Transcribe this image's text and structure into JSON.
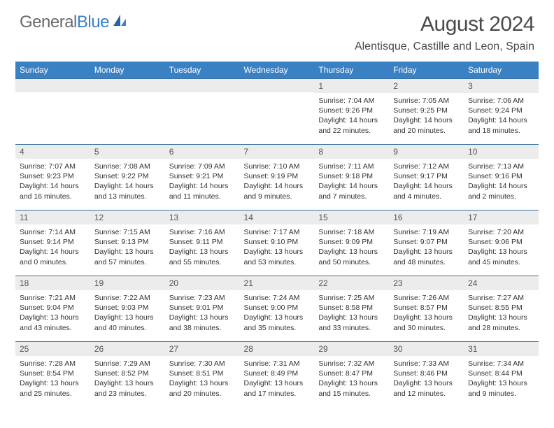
{
  "logo": {
    "part1": "General",
    "part2": "Blue"
  },
  "title": "August 2024",
  "location": "Alentisque, Castille and Leon, Spain",
  "colors": {
    "header_bg": "#3a81c4",
    "daynum_bg": "#ececec",
    "row_border": "#3a6fa3",
    "text_gray": "#6a6a6a",
    "text_blue": "#3a81c4"
  },
  "fonts": {
    "title_size": 30,
    "loc_size": 16,
    "th_size": 12,
    "detail_size": 10.5
  },
  "daynames": [
    "Sunday",
    "Monday",
    "Tuesday",
    "Wednesday",
    "Thursday",
    "Friday",
    "Saturday"
  ],
  "weeks": [
    [
      {
        "n": "",
        "sr": "",
        "ss": "",
        "dl": ""
      },
      {
        "n": "",
        "sr": "",
        "ss": "",
        "dl": ""
      },
      {
        "n": "",
        "sr": "",
        "ss": "",
        "dl": ""
      },
      {
        "n": "",
        "sr": "",
        "ss": "",
        "dl": ""
      },
      {
        "n": "1",
        "sr": "Sunrise: 7:04 AM",
        "ss": "Sunset: 9:26 PM",
        "dl": "Daylight: 14 hours and 22 minutes."
      },
      {
        "n": "2",
        "sr": "Sunrise: 7:05 AM",
        "ss": "Sunset: 9:25 PM",
        "dl": "Daylight: 14 hours and 20 minutes."
      },
      {
        "n": "3",
        "sr": "Sunrise: 7:06 AM",
        "ss": "Sunset: 9:24 PM",
        "dl": "Daylight: 14 hours and 18 minutes."
      }
    ],
    [
      {
        "n": "4",
        "sr": "Sunrise: 7:07 AM",
        "ss": "Sunset: 9:23 PM",
        "dl": "Daylight: 14 hours and 16 minutes."
      },
      {
        "n": "5",
        "sr": "Sunrise: 7:08 AM",
        "ss": "Sunset: 9:22 PM",
        "dl": "Daylight: 14 hours and 13 minutes."
      },
      {
        "n": "6",
        "sr": "Sunrise: 7:09 AM",
        "ss": "Sunset: 9:21 PM",
        "dl": "Daylight: 14 hours and 11 minutes."
      },
      {
        "n": "7",
        "sr": "Sunrise: 7:10 AM",
        "ss": "Sunset: 9:19 PM",
        "dl": "Daylight: 14 hours and 9 minutes."
      },
      {
        "n": "8",
        "sr": "Sunrise: 7:11 AM",
        "ss": "Sunset: 9:18 PM",
        "dl": "Daylight: 14 hours and 7 minutes."
      },
      {
        "n": "9",
        "sr": "Sunrise: 7:12 AM",
        "ss": "Sunset: 9:17 PM",
        "dl": "Daylight: 14 hours and 4 minutes."
      },
      {
        "n": "10",
        "sr": "Sunrise: 7:13 AM",
        "ss": "Sunset: 9:16 PM",
        "dl": "Daylight: 14 hours and 2 minutes."
      }
    ],
    [
      {
        "n": "11",
        "sr": "Sunrise: 7:14 AM",
        "ss": "Sunset: 9:14 PM",
        "dl": "Daylight: 14 hours and 0 minutes."
      },
      {
        "n": "12",
        "sr": "Sunrise: 7:15 AM",
        "ss": "Sunset: 9:13 PM",
        "dl": "Daylight: 13 hours and 57 minutes."
      },
      {
        "n": "13",
        "sr": "Sunrise: 7:16 AM",
        "ss": "Sunset: 9:11 PM",
        "dl": "Daylight: 13 hours and 55 minutes."
      },
      {
        "n": "14",
        "sr": "Sunrise: 7:17 AM",
        "ss": "Sunset: 9:10 PM",
        "dl": "Daylight: 13 hours and 53 minutes."
      },
      {
        "n": "15",
        "sr": "Sunrise: 7:18 AM",
        "ss": "Sunset: 9:09 PM",
        "dl": "Daylight: 13 hours and 50 minutes."
      },
      {
        "n": "16",
        "sr": "Sunrise: 7:19 AM",
        "ss": "Sunset: 9:07 PM",
        "dl": "Daylight: 13 hours and 48 minutes."
      },
      {
        "n": "17",
        "sr": "Sunrise: 7:20 AM",
        "ss": "Sunset: 9:06 PM",
        "dl": "Daylight: 13 hours and 45 minutes."
      }
    ],
    [
      {
        "n": "18",
        "sr": "Sunrise: 7:21 AM",
        "ss": "Sunset: 9:04 PM",
        "dl": "Daylight: 13 hours and 43 minutes."
      },
      {
        "n": "19",
        "sr": "Sunrise: 7:22 AM",
        "ss": "Sunset: 9:03 PM",
        "dl": "Daylight: 13 hours and 40 minutes."
      },
      {
        "n": "20",
        "sr": "Sunrise: 7:23 AM",
        "ss": "Sunset: 9:01 PM",
        "dl": "Daylight: 13 hours and 38 minutes."
      },
      {
        "n": "21",
        "sr": "Sunrise: 7:24 AM",
        "ss": "Sunset: 9:00 PM",
        "dl": "Daylight: 13 hours and 35 minutes."
      },
      {
        "n": "22",
        "sr": "Sunrise: 7:25 AM",
        "ss": "Sunset: 8:58 PM",
        "dl": "Daylight: 13 hours and 33 minutes."
      },
      {
        "n": "23",
        "sr": "Sunrise: 7:26 AM",
        "ss": "Sunset: 8:57 PM",
        "dl": "Daylight: 13 hours and 30 minutes."
      },
      {
        "n": "24",
        "sr": "Sunrise: 7:27 AM",
        "ss": "Sunset: 8:55 PM",
        "dl": "Daylight: 13 hours and 28 minutes."
      }
    ],
    [
      {
        "n": "25",
        "sr": "Sunrise: 7:28 AM",
        "ss": "Sunset: 8:54 PM",
        "dl": "Daylight: 13 hours and 25 minutes."
      },
      {
        "n": "26",
        "sr": "Sunrise: 7:29 AM",
        "ss": "Sunset: 8:52 PM",
        "dl": "Daylight: 13 hours and 23 minutes."
      },
      {
        "n": "27",
        "sr": "Sunrise: 7:30 AM",
        "ss": "Sunset: 8:51 PM",
        "dl": "Daylight: 13 hours and 20 minutes."
      },
      {
        "n": "28",
        "sr": "Sunrise: 7:31 AM",
        "ss": "Sunset: 8:49 PM",
        "dl": "Daylight: 13 hours and 17 minutes."
      },
      {
        "n": "29",
        "sr": "Sunrise: 7:32 AM",
        "ss": "Sunset: 8:47 PM",
        "dl": "Daylight: 13 hours and 15 minutes."
      },
      {
        "n": "30",
        "sr": "Sunrise: 7:33 AM",
        "ss": "Sunset: 8:46 PM",
        "dl": "Daylight: 13 hours and 12 minutes."
      },
      {
        "n": "31",
        "sr": "Sunrise: 7:34 AM",
        "ss": "Sunset: 8:44 PM",
        "dl": "Daylight: 13 hours and 9 minutes."
      }
    ]
  ]
}
